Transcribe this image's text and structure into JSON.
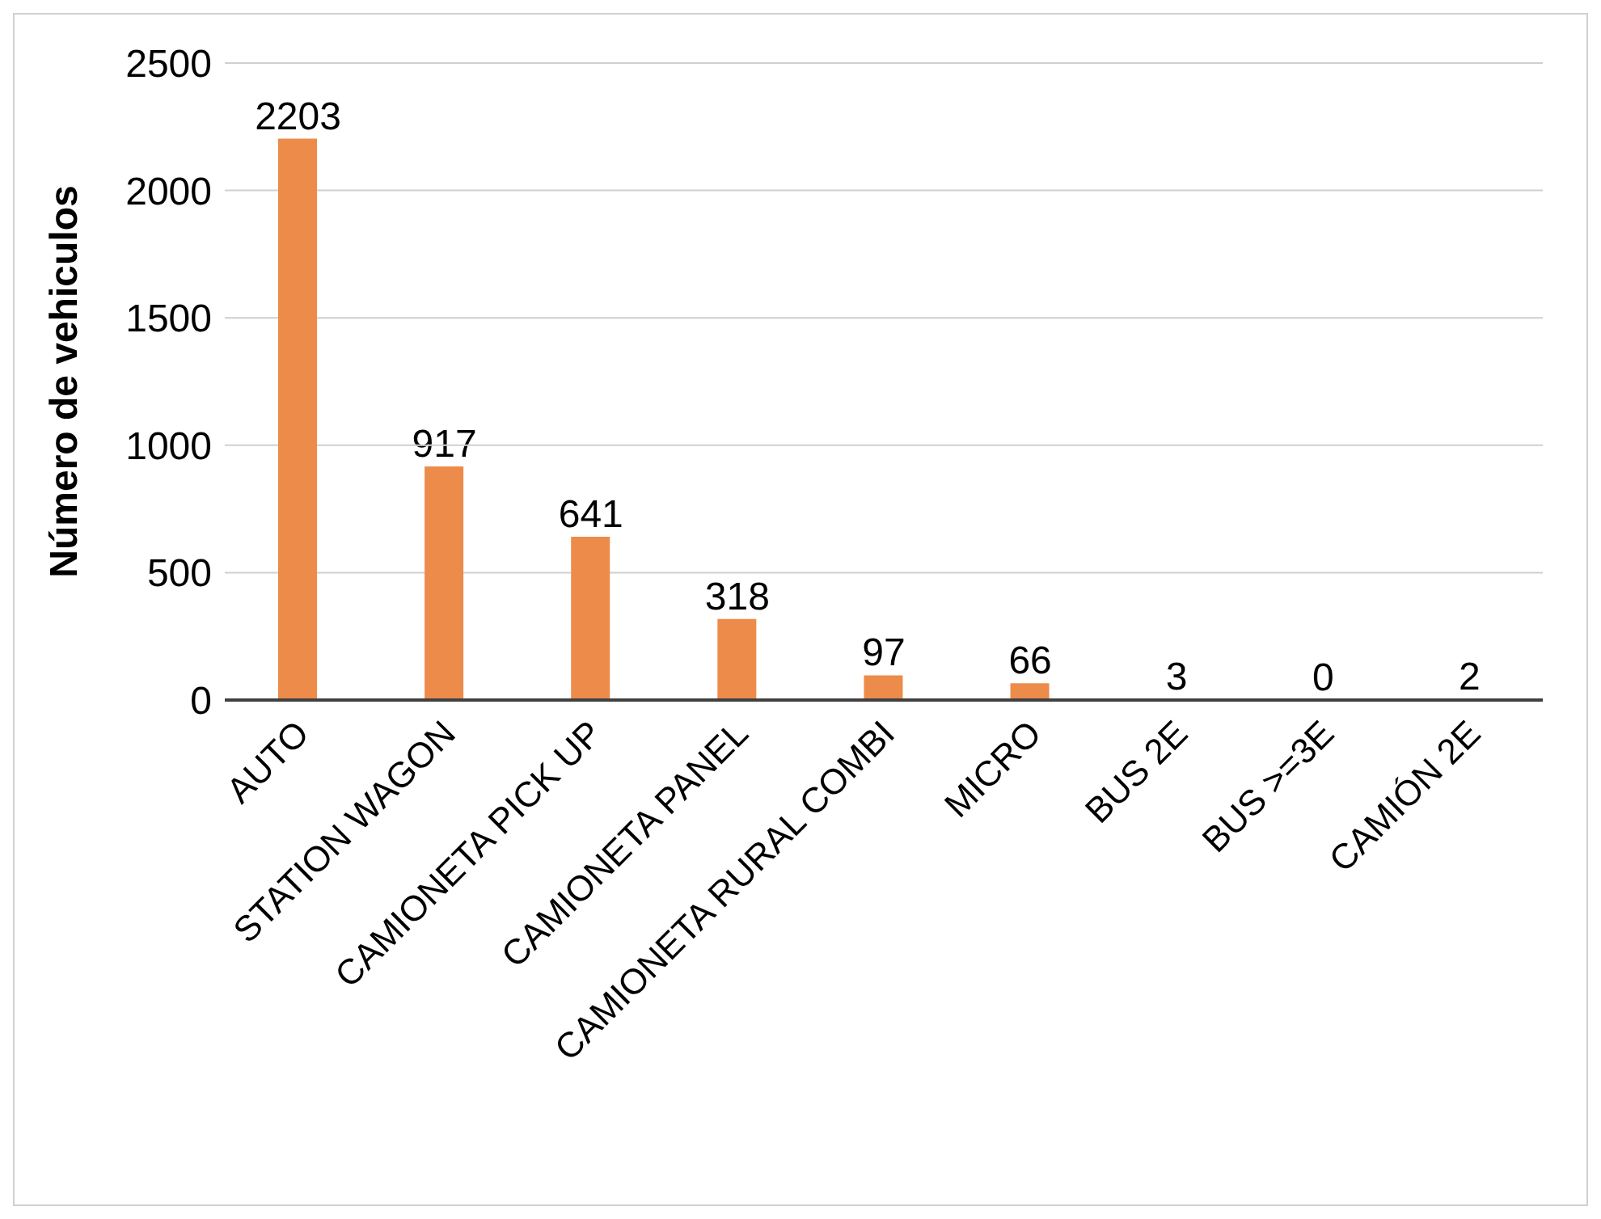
{
  "chart_data": {
    "type": "bar",
    "ylabel": "Número de vehiculos",
    "categories": [
      "AUTO",
      "STATION WAGON",
      "CAMIONETA PICK UP",
      "CAMIONETA PANEL",
      "CAMIONETA RURAL COMBI",
      "MICRO",
      "BUS 2E",
      "BUS >=3E",
      "CAMIÓN 2E"
    ],
    "values": [
      2203,
      917,
      641,
      318,
      97,
      66,
      3,
      0,
      2
    ],
    "color": "#ed8b4a",
    "ylim": [
      0,
      2500
    ],
    "yticks": [
      0,
      500,
      1000,
      1500,
      2000,
      2500
    ],
    "grid": "y",
    "data_labels": true
  }
}
